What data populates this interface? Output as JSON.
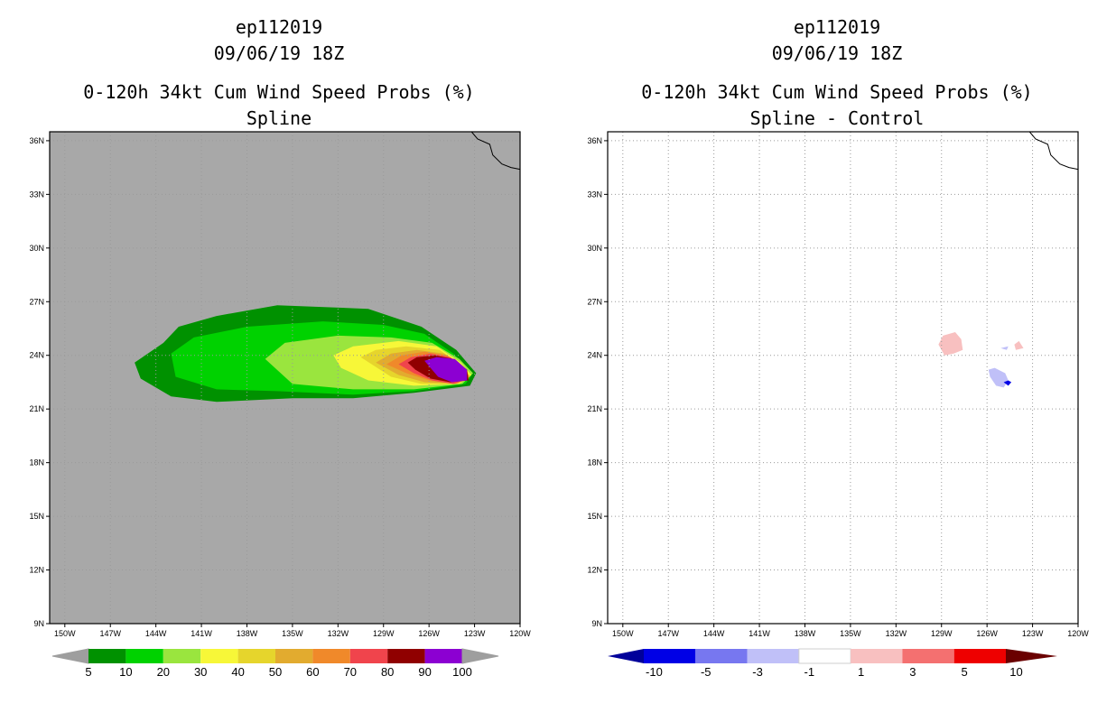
{
  "panels": [
    {
      "storm_id": "ep112019",
      "date": "09/06/19 18Z",
      "title": "0-120h 34kt Cum Wind Speed Probs (%)",
      "subtitle": "Spline",
      "colorbar_labels": [
        "5",
        "10",
        "20",
        "30",
        "40",
        "50",
        "60",
        "70",
        "80",
        "90",
        "100"
      ],
      "colorbar_colors": [
        "#009100",
        "#00d200",
        "#9ae53e",
        "#f7f738",
        "#e6d52c",
        "#e2ab2f",
        "#f0892a",
        "#f0444c",
        "#900000",
        "#8c00d2"
      ]
    },
    {
      "storm_id": "ep112019",
      "date": "09/06/19 18Z",
      "title": "0-120h 34kt Cum Wind Speed Probs (%)",
      "subtitle": "Spline - Control",
      "colorbar_labels": [
        "-10",
        "-5",
        "-3",
        "-1",
        "1",
        "3",
        "5",
        "10"
      ],
      "colorbar_colors": [
        "#0000e6",
        "#7777f0",
        "#c0c0f8",
        "#ffffff",
        "#f8c0c0",
        "#f47070",
        "#ee0000"
      ]
    }
  ],
  "map": {
    "lat_labels": [
      "36N",
      "33N",
      "30N",
      "27N",
      "24N",
      "21N",
      "18N",
      "15N",
      "12N",
      "9N"
    ],
    "lon_labels": [
      "150W",
      "147W",
      "144W",
      "141W",
      "138W",
      "135W",
      "132W",
      "129W",
      "126W",
      "123W",
      "120W"
    ],
    "lat_range": [
      9,
      36.5
    ],
    "lon_range": [
      -151,
      -120
    ],
    "background_left": "#a8a8a8"
  },
  "chart_data": [
    {
      "type": "heatmap",
      "title": "0-120h 34kt Cum Wind Speed Probs (%)",
      "subtitle": "Spline",
      "variable": "34kt cumulative wind speed probability (%)",
      "levels": [
        5,
        10,
        20,
        30,
        40,
        50,
        60,
        70,
        80,
        90,
        100
      ],
      "contours_lonlat": [
        {
          "level": 5,
          "points": [
            [
              -143.5,
              24.7
            ],
            [
              -142.5,
              25.6
            ],
            [
              -140.0,
              26.2
            ],
            [
              -136.0,
              26.8
            ],
            [
              -130.0,
              26.6
            ],
            [
              -126.5,
              25.6
            ],
            [
              -124.2,
              24.3
            ],
            [
              -122.9,
              23.0
            ],
            [
              -123.3,
              22.3
            ],
            [
              -127.0,
              21.9
            ],
            [
              -131.0,
              21.6
            ],
            [
              -135.0,
              21.6
            ],
            [
              -140.0,
              21.4
            ],
            [
              -143.0,
              21.7
            ],
            [
              -145.0,
              22.7
            ],
            [
              -145.4,
              23.6
            ]
          ]
        },
        {
          "level": 10,
          "points": [
            [
              -143.0,
              24.1
            ],
            [
              -141.5,
              25.0
            ],
            [
              -138.0,
              25.6
            ],
            [
              -133.0,
              25.9
            ],
            [
              -129.0,
              25.7
            ],
            [
              -126.3,
              25.2
            ],
            [
              -124.4,
              24.1
            ],
            [
              -123.1,
              23.0
            ],
            [
              -123.6,
              22.4
            ],
            [
              -127.0,
              22.0
            ],
            [
              -131.0,
              21.8
            ],
            [
              -136.0,
              22.0
            ],
            [
              -140.0,
              22.1
            ],
            [
              -142.7,
              22.8
            ]
          ]
        },
        {
          "level": 20,
          "points": [
            [
              -136.8,
              23.8
            ],
            [
              -135.5,
              24.7
            ],
            [
              -132.0,
              25.1
            ],
            [
              -128.5,
              25.0
            ],
            [
              -125.8,
              24.7
            ],
            [
              -124.0,
              23.8
            ],
            [
              -123.1,
              23.0
            ],
            [
              -123.8,
              22.4
            ],
            [
              -127.0,
              22.1
            ],
            [
              -131.0,
              22.1
            ],
            [
              -135.0,
              22.4
            ]
          ]
        },
        {
          "level": 30,
          "points": [
            [
              -132.3,
              24.0
            ],
            [
              -131.0,
              24.5
            ],
            [
              -128.0,
              24.8
            ],
            [
              -125.5,
              24.5
            ],
            [
              -123.9,
              23.6
            ],
            [
              -123.2,
              22.9
            ],
            [
              -124.0,
              22.4
            ],
            [
              -127.0,
              22.3
            ],
            [
              -130.0,
              22.6
            ],
            [
              -131.8,
              23.3
            ]
          ]
        },
        {
          "level": 40,
          "points": [
            [
              -130.5,
              23.9
            ],
            [
              -129.5,
              24.3
            ],
            [
              -127.5,
              24.5
            ],
            [
              -125.3,
              24.3
            ],
            [
              -123.8,
              23.4
            ],
            [
              -123.3,
              22.8
            ],
            [
              -124.1,
              22.4
            ],
            [
              -126.5,
              22.4
            ],
            [
              -128.5,
              22.8
            ]
          ]
        },
        {
          "level": 50,
          "points": [
            [
              -129.5,
              23.6
            ],
            [
              -128.5,
              24.1
            ],
            [
              -126.8,
              24.3
            ],
            [
              -125.0,
              24.1
            ],
            [
              -123.7,
              23.3
            ],
            [
              -123.3,
              22.8
            ],
            [
              -124.2,
              22.4
            ],
            [
              -126.3,
              22.5
            ],
            [
              -128.0,
              22.9
            ]
          ]
        },
        {
          "level": 60,
          "points": [
            [
              -128.8,
              23.5
            ],
            [
              -127.8,
              24.0
            ],
            [
              -126.3,
              24.2
            ],
            [
              -124.8,
              24.0
            ],
            [
              -123.6,
              23.2
            ],
            [
              -123.4,
              22.7
            ],
            [
              -124.3,
              22.4
            ],
            [
              -126.0,
              22.6
            ],
            [
              -127.5,
              23.0
            ]
          ]
        },
        {
          "level": 70,
          "points": [
            [
              -128.0,
              23.5
            ],
            [
              -127.2,
              23.9
            ],
            [
              -125.9,
              24.1
            ],
            [
              -124.6,
              23.9
            ],
            [
              -123.5,
              23.2
            ],
            [
              -123.4,
              22.7
            ],
            [
              -124.4,
              22.4
            ],
            [
              -125.8,
              22.6
            ],
            [
              -127.0,
              23.0
            ]
          ]
        },
        {
          "level": 80,
          "points": [
            [
              -127.4,
              23.6
            ],
            [
              -126.8,
              23.9
            ],
            [
              -125.6,
              24.0
            ],
            [
              -124.4,
              23.8
            ],
            [
              -123.5,
              23.2
            ],
            [
              -123.4,
              22.6
            ],
            [
              -124.6,
              22.5
            ],
            [
              -125.9,
              22.7
            ],
            [
              -126.9,
              23.2
            ]
          ]
        },
        {
          "level": 90,
          "points": [
            [
              -126.3,
              23.7
            ],
            [
              -125.5,
              23.9
            ],
            [
              -124.3,
              23.8
            ],
            [
              -123.5,
              23.2
            ],
            [
              -123.5,
              22.6
            ],
            [
              -124.5,
              22.5
            ],
            [
              -125.4,
              22.8
            ]
          ]
        }
      ]
    },
    {
      "type": "heatmap",
      "title": "0-120h 34kt Cum Wind Speed Probs (%)",
      "subtitle": "Spline - Control",
      "variable": "probability difference (%)",
      "levels": [
        -10,
        -5,
        -3,
        -1,
        1,
        3,
        5,
        10
      ],
      "contours_lonlat": [
        {
          "level": 1,
          "points": [
            [
              -129.2,
              24.6
            ],
            [
              -128.9,
              25.1
            ],
            [
              -128.1,
              25.3
            ],
            [
              -127.7,
              24.9
            ],
            [
              -127.6,
              24.3
            ],
            [
              -128.2,
              24.1
            ],
            [
              -128.8,
              24.0
            ]
          ]
        },
        {
          "level": 1,
          "points": [
            [
              -124.2,
              24.6
            ],
            [
              -123.9,
              24.8
            ],
            [
              -123.6,
              24.4
            ],
            [
              -124.1,
              24.3
            ]
          ]
        },
        {
          "level": -1,
          "points": [
            [
              -125.8,
              22.8
            ],
            [
              -125.9,
              23.2
            ],
            [
              -125.5,
              23.3
            ],
            [
              -124.8,
              23.0
            ],
            [
              -124.6,
              22.6
            ],
            [
              -124.9,
              22.2
            ],
            [
              -125.4,
              22.3
            ]
          ]
        },
        {
          "level": -1,
          "points": [
            [
              -125.1,
              24.4
            ],
            [
              -124.6,
              24.5
            ],
            [
              -124.7,
              24.3
            ]
          ]
        },
        {
          "level": -10,
          "points": [
            [
              -124.9,
              22.5
            ],
            [
              -124.6,
              22.6
            ],
            [
              -124.4,
              22.5
            ],
            [
              -124.6,
              22.3
            ]
          ]
        }
      ]
    }
  ]
}
